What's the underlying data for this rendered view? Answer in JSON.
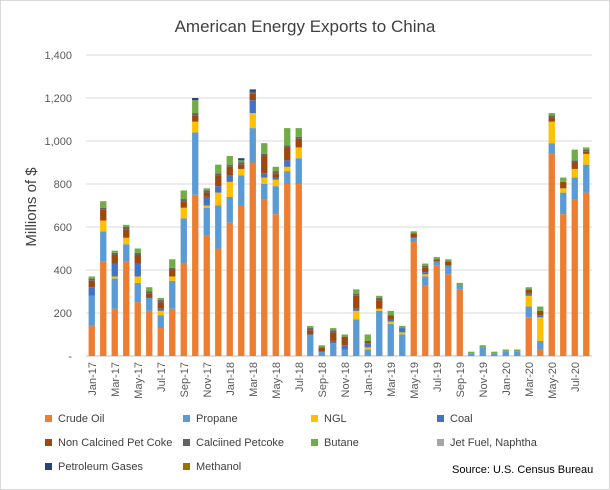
{
  "chart_data": {
    "type": "bar",
    "stacked": true,
    "title": "American Energy Exports to China",
    "ylabel": "Millions of $",
    "xlabel": "",
    "ylim": [
      0,
      1400
    ],
    "yticks": [
      0,
      200,
      400,
      600,
      800,
      1000,
      1200,
      1400
    ],
    "ytick_labels": [
      "-",
      "200",
      "400",
      "600",
      "800",
      "1,000",
      "1,200",
      "1,400"
    ],
    "grid": true,
    "legend_position": "bottom",
    "source": "Source: U.S. Census Bureau",
    "categories": [
      "Jan-17",
      "Feb-17",
      "Mar-17",
      "Apr-17",
      "May-17",
      "Jun-17",
      "Jul-17",
      "Aug-17",
      "Sep-17",
      "Oct-17",
      "Nov-17",
      "Dec-17",
      "Jan-18",
      "Feb-18",
      "Mar-18",
      "Apr-18",
      "May-18",
      "Jun-18",
      "Jul-18",
      "Aug-18",
      "Sep-18",
      "Oct-18",
      "Nov-18",
      "Dec-18",
      "Jan-19",
      "Feb-19",
      "Mar-19",
      "Apr-19",
      "May-19",
      "Jun-19",
      "Jul-19",
      "Aug-19",
      "Sep-19",
      "Oct-19",
      "Nov-19",
      "Dec-19",
      "Jan-20",
      "Feb-20",
      "Mar-20",
      "Apr-20",
      "May-20",
      "Jun-20",
      "Jul-20",
      "Aug-20"
    ],
    "shown_tick_labels": [
      "Jan-17",
      "Mar-17",
      "May-17",
      "Jul-17",
      "Sep-17",
      "Nov-17",
      "Jan-18",
      "Mar-18",
      "May-18",
      "Jul-18",
      "Sep-18",
      "Nov-18",
      "Jan-19",
      "Mar-19",
      "May-19",
      "Jul-19",
      "Sep-19",
      "Nov-19",
      "Jan-20",
      "Mar-20",
      "May-20",
      "Jul-20"
    ],
    "series": [
      {
        "name": "Crude Oil",
        "color": "#ED7D31",
        "values": [
          140,
          440,
          220,
          440,
          250,
          210,
          130,
          220,
          430,
          750,
          560,
          500,
          620,
          700,
          900,
          730,
          660,
          800,
          800,
          0,
          0,
          0,
          0,
          0,
          0,
          0,
          0,
          0,
          530,
          330,
          420,
          380,
          310,
          0,
          0,
          0,
          0,
          0,
          180,
          30,
          940,
          660,
          730,
          760
        ]
      },
      {
        "name": "Propane",
        "color": "#5B9BD5",
        "values": [
          140,
          140,
          140,
          80,
          90,
          60,
          60,
          130,
          210,
          290,
          130,
          200,
          120,
          140,
          160,
          70,
          130,
          60,
          120,
          100,
          20,
          60,
          30,
          170,
          30,
          210,
          150,
          100,
          20,
          40,
          20,
          40,
          20,
          10,
          40,
          10,
          20,
          20,
          50,
          40,
          50,
          100,
          100,
          130
        ]
      },
      {
        "name": "NGL",
        "color": "#FFC000",
        "values": [
          0,
          50,
          10,
          30,
          30,
          0,
          20,
          20,
          50,
          50,
          10,
          60,
          70,
          30,
          70,
          30,
          30,
          20,
          50,
          0,
          0,
          0,
          0,
          40,
          10,
          10,
          10,
          10,
          0,
          10,
          0,
          0,
          0,
          0,
          0,
          0,
          0,
          0,
          50,
          110,
          100,
          20,
          40,
          50
        ]
      },
      {
        "name": "Coal",
        "color": "#4472C4",
        "values": [
          40,
          0,
          60,
          0,
          60,
          0,
          10,
          0,
          0,
          0,
          40,
          30,
          30,
          0,
          60,
          20,
          10,
          30,
          0,
          0,
          0,
          10,
          20,
          10,
          20,
          0,
          10,
          20,
          0,
          10,
          0,
          0,
          0,
          0,
          0,
          0,
          0,
          0,
          10,
          10,
          0,
          0,
          0,
          0
        ]
      },
      {
        "name": "Non Calcined Pet Coke",
        "color": "#9E480E",
        "values": [
          30,
          50,
          40,
          40,
          40,
          20,
          30,
          30,
          30,
          30,
          20,
          50,
          40,
          20,
          30,
          80,
          20,
          60,
          40,
          20,
          20,
          40,
          40,
          60,
          10,
          40,
          20,
          0,
          20,
          20,
          10,
          20,
          0,
          0,
          0,
          0,
          0,
          0,
          20,
          20,
          20,
          30,
          30,
          10
        ]
      },
      {
        "name": "Calciined Petcoke",
        "color": "#636363",
        "values": [
          10,
          10,
          10,
          10,
          10,
          10,
          10,
          10,
          10,
          10,
          10,
          10,
          10,
          10,
          10,
          10,
          10,
          10,
          10,
          10,
          0,
          10,
          0,
          10,
          0,
          10,
          0,
          0,
          0,
          10,
          0,
          0,
          0,
          0,
          0,
          0,
          0,
          0,
          0,
          0,
          10,
          0,
          10,
          10
        ]
      },
      {
        "name": "Butane",
        "color": "#70AD47",
        "values": [
          10,
          30,
          10,
          10,
          20,
          20,
          10,
          40,
          40,
          60,
          10,
          40,
          40,
          10,
          0,
          50,
          20,
          80,
          40,
          10,
          10,
          10,
          10,
          20,
          30,
          10,
          20,
          10,
          10,
          10,
          10,
          10,
          10,
          10,
          10,
          10,
          10,
          10,
          10,
          20,
          10,
          20,
          50,
          10
        ]
      },
      {
        "name": "Jet Fuel, Naphtha",
        "color": "#A5A5A5",
        "values": [
          0,
          0,
          0,
          0,
          0,
          0,
          0,
          0,
          0,
          0,
          0,
          0,
          0,
          0,
          0,
          0,
          0,
          0,
          0,
          0,
          0,
          0,
          0,
          0,
          0,
          0,
          0,
          0,
          0,
          0,
          0,
          0,
          0,
          0,
          0,
          0,
          0,
          0,
          0,
          0,
          0,
          0,
          0,
          0
        ]
      },
      {
        "name": "Petroleum Gases",
        "color": "#264478",
        "values": [
          0,
          0,
          0,
          0,
          0,
          0,
          0,
          0,
          0,
          10,
          0,
          0,
          0,
          10,
          10,
          0,
          0,
          0,
          0,
          0,
          0,
          0,
          0,
          0,
          0,
          0,
          0,
          0,
          0,
          0,
          0,
          0,
          0,
          0,
          0,
          0,
          0,
          0,
          0,
          0,
          0,
          0,
          0,
          0
        ]
      },
      {
        "name": "Methanol",
        "color": "#997300",
        "values": [
          0,
          0,
          0,
          0,
          0,
          0,
          0,
          0,
          0,
          0,
          0,
          0,
          0,
          0,
          0,
          0,
          0,
          0,
          0,
          0,
          0,
          0,
          0,
          0,
          0,
          0,
          0,
          0,
          0,
          0,
          0,
          0,
          0,
          0,
          0,
          0,
          0,
          0,
          0,
          0,
          0,
          0,
          0,
          0
        ]
      }
    ]
  }
}
